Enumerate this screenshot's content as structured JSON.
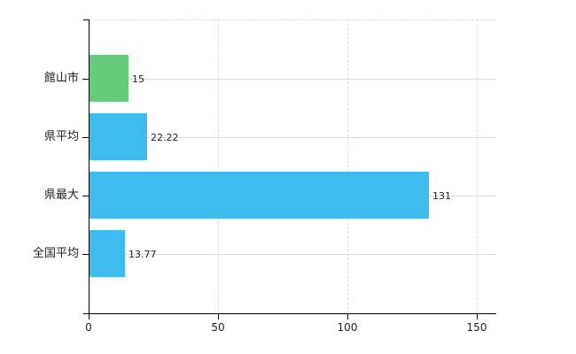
{
  "chart_data": {
    "type": "bar",
    "orientation": "horizontal",
    "categories": [
      "館山市",
      "県平均",
      "県最大",
      "全国平均"
    ],
    "values": [
      15,
      22.22,
      131,
      13.77
    ],
    "value_labels": [
      "15",
      "22.22",
      "131",
      "13.77"
    ],
    "bar_colors": [
      "#66cb7c",
      "#3ebcf0",
      "#3ebcf0",
      "#3ebcf0"
    ],
    "x_tick_labels": [
      "0",
      "50",
      "100",
      "150"
    ],
    "x_tick_values": [
      0,
      50,
      100,
      150
    ],
    "xlim": [
      0,
      157.5
    ],
    "grid": true,
    "legend_position": "none",
    "accent_colors": {
      "green_bar": "#66cb7c",
      "blue_bar": "#3ebcf0"
    }
  },
  "style_colors": {
    "axis": "#000000",
    "row_gridline": "#d6ddd6",
    "column_gridline": "#dddddd",
    "text": "#222222",
    "background": "#ffffff"
  }
}
